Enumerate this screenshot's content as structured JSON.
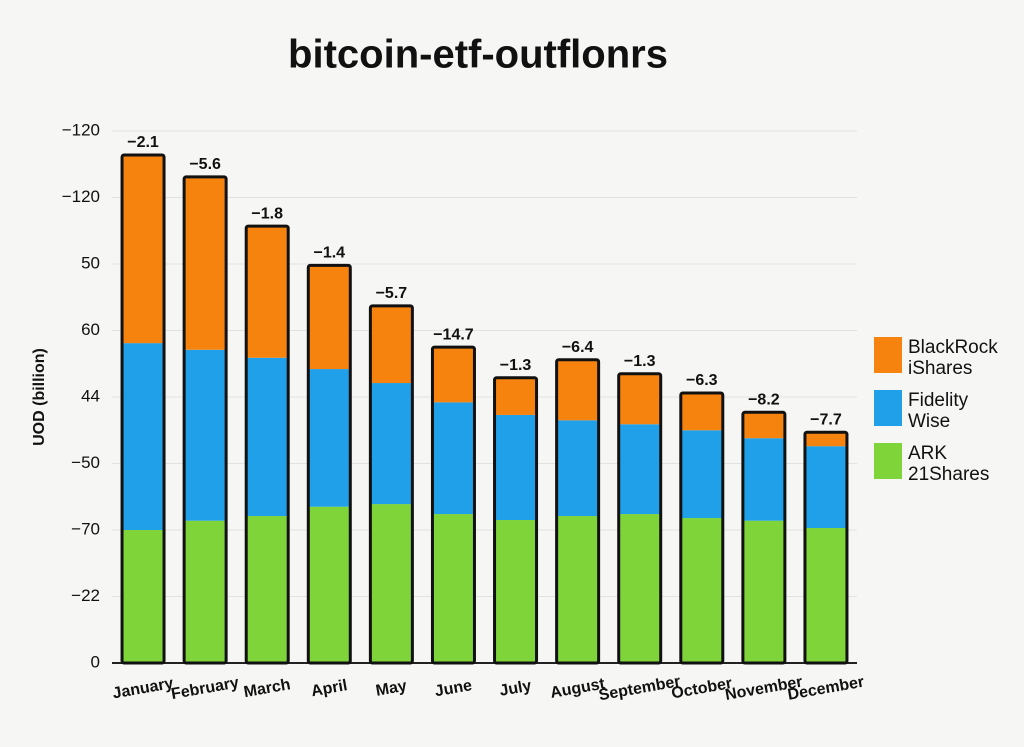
{
  "chart_data": {
    "type": "stacked_bar",
    "title": "bitcoin-etf-outflonrs",
    "y_label": "UOD (billion)",
    "categories": [
      "January",
      "February",
      "March",
      "April",
      "May",
      "June",
      "July",
      "August",
      "September",
      "October",
      "November",
      "December"
    ],
    "series": [
      {
        "name": "BlackRock\niShares",
        "color": "#f7830f",
        "values": [
          28.3,
          26.0,
          19.8,
          15.6,
          11.6,
          8.3,
          5.6,
          9.1,
          7.6,
          5.6,
          3.9,
          2.1
        ]
      },
      {
        "name": "Fidelity\nWise",
        "color": "#1fa0e8",
        "values": [
          28.1,
          25.7,
          23.8,
          20.7,
          18.2,
          16.8,
          15.8,
          14.4,
          13.5,
          13.2,
          12.4,
          12.3
        ]
      },
      {
        "name": "ARK\n21Shares",
        "color": "#7fd43a",
        "values": [
          20.0,
          21.4,
          22.1,
          23.5,
          23.9,
          22.4,
          21.5,
          22.1,
          22.4,
          21.8,
          21.4,
          20.3
        ]
      }
    ],
    "bar_labels": [
      "−2.1",
      "−5.6",
      "−1.8",
      "−1.4",
      "−5.7",
      "−14.7",
      "−1.3",
      "−6.4",
      "−1.3",
      "−6.3",
      "−8.2",
      "−7.7"
    ],
    "ylim": [
      0,
      80
    ],
    "yticks": [
      0,
      {
        "value": 10,
        "label": "−22"
      },
      {
        "value": 20,
        "label": "−70"
      },
      {
        "value": 30,
        "label": "−50"
      },
      {
        "value": 40,
        "label": "44"
      },
      {
        "value": 50,
        "label": "60"
      },
      {
        "value": 60,
        "label": "50"
      },
      {
        "value": 70,
        "label": "−120"
      },
      {
        "value": 80,
        "label": "−120"
      }
    ],
    "grid": true,
    "legend": "right"
  }
}
